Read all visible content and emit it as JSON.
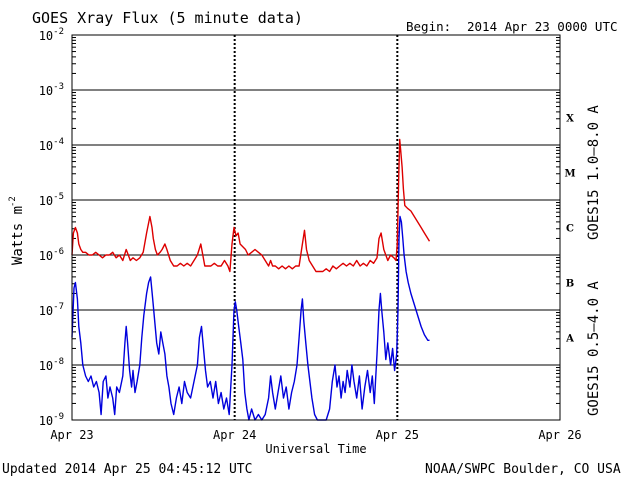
{
  "chart_data": {
    "type": "line",
    "title": "GOES Xray Flux (5 minute data)",
    "begin_label": "Begin:",
    "begin_value": "2014 Apr 23 0000 UTC",
    "xlabel": "Universal Time",
    "ylabel_base": "Watts m",
    "ylabel_exponent": "-2",
    "y_scale": "log",
    "ylim": [
      1e-09,
      0.01
    ],
    "xlim_hours": [
      0,
      72
    ],
    "x_ticks": [
      {
        "hour": 0,
        "label": "Apr 23"
      },
      {
        "hour": 24,
        "label": "Apr 24"
      },
      {
        "hour": 48,
        "label": "Apr 25"
      },
      {
        "hour": 72,
        "label": "Apr 26"
      }
    ],
    "y_ticks": [
      {
        "exp": -2,
        "base": "10",
        "sup": "-2"
      },
      {
        "exp": -3,
        "base": "10",
        "sup": "-3"
      },
      {
        "exp": -4,
        "base": "10",
        "sup": "-4"
      },
      {
        "exp": -5,
        "base": "10",
        "sup": "-5"
      },
      {
        "exp": -6,
        "base": "10",
        "sup": "-6"
      },
      {
        "exp": -7,
        "base": "10",
        "sup": "-7"
      },
      {
        "exp": -8,
        "base": "10",
        "sup": "-8"
      },
      {
        "exp": -9,
        "base": "10",
        "sup": "-9"
      }
    ],
    "flare_classes": [
      {
        "label": "X",
        "exp": -3.5
      },
      {
        "label": "M",
        "exp": -4.5
      },
      {
        "label": "C",
        "exp": -5.5
      },
      {
        "label": "B",
        "exp": -6.5
      },
      {
        "label": "A",
        "exp": -7.5
      }
    ],
    "series": [
      {
        "name": "GOES15 1.0–8.0 A",
        "color": "#dd0000",
        "points": [
          [
            0.0,
            -6.0
          ],
          [
            0.2,
            -5.6
          ],
          [
            0.5,
            -5.5
          ],
          [
            0.8,
            -5.6
          ],
          [
            1.0,
            -5.8
          ],
          [
            1.3,
            -5.9
          ],
          [
            1.6,
            -5.95
          ],
          [
            2.0,
            -5.95
          ],
          [
            2.5,
            -6.0
          ],
          [
            3.0,
            -6.0
          ],
          [
            3.5,
            -5.95
          ],
          [
            4.0,
            -6.0
          ],
          [
            4.5,
            -6.05
          ],
          [
            5.0,
            -6.0
          ],
          [
            5.5,
            -6.0
          ],
          [
            6.0,
            -5.95
          ],
          [
            6.5,
            -6.05
          ],
          [
            7.0,
            -6.0
          ],
          [
            7.5,
            -6.1
          ],
          [
            8.0,
            -5.9
          ],
          [
            8.3,
            -6.0
          ],
          [
            8.6,
            -6.1
          ],
          [
            9.0,
            -6.05
          ],
          [
            9.5,
            -6.1
          ],
          [
            10.0,
            -6.05
          ],
          [
            10.5,
            -5.95
          ],
          [
            11.0,
            -5.6
          ],
          [
            11.5,
            -5.3
          ],
          [
            11.8,
            -5.5
          ],
          [
            12.0,
            -5.7
          ],
          [
            12.3,
            -5.9
          ],
          [
            12.6,
            -6.0
          ],
          [
            13.0,
            -5.95
          ],
          [
            13.3,
            -5.9
          ],
          [
            13.7,
            -5.8
          ],
          [
            14.0,
            -5.9
          ],
          [
            14.5,
            -6.1
          ],
          [
            15.0,
            -6.2
          ],
          [
            15.5,
            -6.2
          ],
          [
            16.0,
            -6.15
          ],
          [
            16.5,
            -6.2
          ],
          [
            17.0,
            -6.15
          ],
          [
            17.5,
            -6.2
          ],
          [
            18.0,
            -6.1
          ],
          [
            18.5,
            -6.0
          ],
          [
            19.0,
            -5.8
          ],
          [
            19.3,
            -6.0
          ],
          [
            19.6,
            -6.2
          ],
          [
            20.0,
            -6.2
          ],
          [
            20.5,
            -6.2
          ],
          [
            21.0,
            -6.15
          ],
          [
            21.5,
            -6.2
          ],
          [
            22.0,
            -6.2
          ],
          [
            22.5,
            -6.1
          ],
          [
            23.0,
            -6.2
          ],
          [
            23.3,
            -6.3
          ],
          [
            23.6,
            -5.8
          ],
          [
            23.9,
            -5.5
          ],
          [
            24.2,
            -5.65
          ],
          [
            24.5,
            -5.6
          ],
          [
            24.8,
            -5.8
          ],
          [
            25.2,
            -5.85
          ],
          [
            25.6,
            -5.9
          ],
          [
            26.0,
            -6.0
          ],
          [
            26.5,
            -5.95
          ],
          [
            27.0,
            -5.9
          ],
          [
            27.5,
            -5.95
          ],
          [
            28.0,
            -6.0
          ],
          [
            28.5,
            -6.1
          ],
          [
            29.0,
            -6.2
          ],
          [
            29.3,
            -6.1
          ],
          [
            29.6,
            -6.2
          ],
          [
            30.0,
            -6.2
          ],
          [
            30.5,
            -6.25
          ],
          [
            31.0,
            -6.2
          ],
          [
            31.5,
            -6.25
          ],
          [
            32.0,
            -6.2
          ],
          [
            32.5,
            -6.25
          ],
          [
            33.0,
            -6.2
          ],
          [
            33.5,
            -6.2
          ],
          [
            34.0,
            -5.8
          ],
          [
            34.3,
            -5.55
          ],
          [
            34.6,
            -5.9
          ],
          [
            35.0,
            -6.1
          ],
          [
            35.5,
            -6.2
          ],
          [
            36.0,
            -6.3
          ],
          [
            36.5,
            -6.3
          ],
          [
            37.0,
            -6.3
          ],
          [
            37.5,
            -6.25
          ],
          [
            38.0,
            -6.3
          ],
          [
            38.5,
            -6.2
          ],
          [
            39.0,
            -6.25
          ],
          [
            39.5,
            -6.2
          ],
          [
            40.0,
            -6.15
          ],
          [
            40.5,
            -6.2
          ],
          [
            41.0,
            -6.15
          ],
          [
            41.5,
            -6.2
          ],
          [
            42.0,
            -6.1
          ],
          [
            42.5,
            -6.2
          ],
          [
            43.0,
            -6.15
          ],
          [
            43.5,
            -6.2
          ],
          [
            44.0,
            -6.1
          ],
          [
            44.5,
            -6.15
          ],
          [
            45.0,
            -6.05
          ],
          [
            45.3,
            -5.7
          ],
          [
            45.6,
            -5.6
          ],
          [
            46.0,
            -5.9
          ],
          [
            46.3,
            -6.0
          ],
          [
            46.6,
            -6.1
          ],
          [
            47.0,
            -6.0
          ],
          [
            47.5,
            -6.05
          ],
          [
            47.8,
            -6.1
          ],
          [
            48.0,
            -5.8
          ],
          [
            48.2,
            -4.6
          ],
          [
            48.35,
            -3.9
          ],
          [
            48.5,
            -4.1
          ],
          [
            48.7,
            -4.4
          ],
          [
            48.9,
            -4.8
          ],
          [
            49.1,
            -5.1
          ],
          [
            49.5,
            -5.15
          ],
          [
            50.0,
            -5.2
          ],
          [
            50.5,
            -5.3
          ],
          [
            51.0,
            -5.4
          ],
          [
            51.5,
            -5.5
          ],
          [
            52.0,
            -5.6
          ],
          [
            52.5,
            -5.7
          ],
          [
            52.75,
            -5.75
          ]
        ]
      },
      {
        "name": "GOES15 0.5–4.0 A",
        "color": "#0000dd",
        "points": [
          [
            0.0,
            -7.5
          ],
          [
            0.3,
            -6.6
          ],
          [
            0.5,
            -6.5
          ],
          [
            0.8,
            -6.8
          ],
          [
            1.0,
            -7.3
          ],
          [
            1.3,
            -7.6
          ],
          [
            1.6,
            -8.0
          ],
          [
            2.0,
            -8.2
          ],
          [
            2.4,
            -8.3
          ],
          [
            2.8,
            -8.2
          ],
          [
            3.2,
            -8.4
          ],
          [
            3.6,
            -8.3
          ],
          [
            4.0,
            -8.5
          ],
          [
            4.3,
            -8.9
          ],
          [
            4.6,
            -8.3
          ],
          [
            5.0,
            -8.2
          ],
          [
            5.3,
            -8.6
          ],
          [
            5.6,
            -8.4
          ],
          [
            6.0,
            -8.6
          ],
          [
            6.3,
            -8.9
          ],
          [
            6.6,
            -8.4
          ],
          [
            7.0,
            -8.5
          ],
          [
            7.5,
            -8.2
          ],
          [
            7.8,
            -7.6
          ],
          [
            8.0,
            -7.3
          ],
          [
            8.2,
            -7.6
          ],
          [
            8.5,
            -8.1
          ],
          [
            8.8,
            -8.4
          ],
          [
            9.0,
            -8.1
          ],
          [
            9.3,
            -8.5
          ],
          [
            9.6,
            -8.3
          ],
          [
            10.0,
            -8.0
          ],
          [
            10.3,
            -7.5
          ],
          [
            10.6,
            -7.1
          ],
          [
            11.0,
            -6.7
          ],
          [
            11.3,
            -6.5
          ],
          [
            11.6,
            -6.4
          ],
          [
            11.9,
            -6.8
          ],
          [
            12.2,
            -7.2
          ],
          [
            12.5,
            -7.6
          ],
          [
            12.8,
            -7.8
          ],
          [
            13.1,
            -7.4
          ],
          [
            13.4,
            -7.6
          ],
          [
            13.7,
            -7.8
          ],
          [
            14.0,
            -8.2
          ],
          [
            14.3,
            -8.4
          ],
          [
            14.6,
            -8.7
          ],
          [
            15.0,
            -8.9
          ],
          [
            15.4,
            -8.6
          ],
          [
            15.8,
            -8.4
          ],
          [
            16.2,
            -8.7
          ],
          [
            16.6,
            -8.3
          ],
          [
            17.0,
            -8.5
          ],
          [
            17.5,
            -8.6
          ],
          [
            18.0,
            -8.3
          ],
          [
            18.5,
            -8.0
          ],
          [
            18.8,
            -7.5
          ],
          [
            19.1,
            -7.3
          ],
          [
            19.4,
            -7.7
          ],
          [
            19.7,
            -8.1
          ],
          [
            20.0,
            -8.4
          ],
          [
            20.4,
            -8.3
          ],
          [
            20.8,
            -8.6
          ],
          [
            21.2,
            -8.3
          ],
          [
            21.6,
            -8.7
          ],
          [
            22.0,
            -8.5
          ],
          [
            22.4,
            -8.8
          ],
          [
            22.8,
            -8.6
          ],
          [
            23.2,
            -8.9
          ],
          [
            23.6,
            -8.0
          ],
          [
            23.9,
            -7.0
          ],
          [
            24.1,
            -6.85
          ],
          [
            24.3,
            -7.0
          ],
          [
            24.6,
            -7.3
          ],
          [
            24.9,
            -7.6
          ],
          [
            25.2,
            -7.9
          ],
          [
            25.5,
            -8.5
          ],
          [
            25.8,
            -8.8
          ],
          [
            26.1,
            -9.0
          ],
          [
            26.5,
            -8.8
          ],
          [
            27.0,
            -9.0
          ],
          [
            27.5,
            -8.9
          ],
          [
            28.0,
            -9.0
          ],
          [
            28.5,
            -8.9
          ],
          [
            29.0,
            -8.6
          ],
          [
            29.3,
            -8.2
          ],
          [
            29.6,
            -8.5
          ],
          [
            30.0,
            -8.8
          ],
          [
            30.4,
            -8.5
          ],
          [
            30.8,
            -8.2
          ],
          [
            31.2,
            -8.6
          ],
          [
            31.6,
            -8.4
          ],
          [
            32.0,
            -8.8
          ],
          [
            32.4,
            -8.5
          ],
          [
            32.8,
            -8.3
          ],
          [
            33.2,
            -8.0
          ],
          [
            33.5,
            -7.5
          ],
          [
            33.8,
            -7.0
          ],
          [
            34.0,
            -6.8
          ],
          [
            34.2,
            -7.2
          ],
          [
            34.5,
            -7.6
          ],
          [
            34.8,
            -8.0
          ],
          [
            35.1,
            -8.3
          ],
          [
            35.4,
            -8.6
          ],
          [
            35.8,
            -8.9
          ],
          [
            36.2,
            -9.0
          ],
          [
            36.6,
            -9.0
          ],
          [
            37.0,
            -9.0
          ],
          [
            37.5,
            -9.0
          ],
          [
            38.0,
            -8.8
          ],
          [
            38.4,
            -8.3
          ],
          [
            38.8,
            -8.0
          ],
          [
            39.1,
            -8.4
          ],
          [
            39.4,
            -8.2
          ],
          [
            39.7,
            -8.6
          ],
          [
            40.0,
            -8.3
          ],
          [
            40.3,
            -8.5
          ],
          [
            40.6,
            -8.1
          ],
          [
            41.0,
            -8.4
          ],
          [
            41.3,
            -8.0
          ],
          [
            41.6,
            -8.3
          ],
          [
            42.0,
            -8.6
          ],
          [
            42.4,
            -8.2
          ],
          [
            42.8,
            -8.8
          ],
          [
            43.2,
            -8.4
          ],
          [
            43.6,
            -8.1
          ],
          [
            44.0,
            -8.5
          ],
          [
            44.3,
            -8.2
          ],
          [
            44.6,
            -8.7
          ],
          [
            45.0,
            -7.8
          ],
          [
            45.3,
            -7.0
          ],
          [
            45.5,
            -6.7
          ],
          [
            45.7,
            -7.0
          ],
          [
            46.0,
            -7.4
          ],
          [
            46.3,
            -7.9
          ],
          [
            46.6,
            -7.6
          ],
          [
            47.0,
            -8.0
          ],
          [
            47.3,
            -7.7
          ],
          [
            47.6,
            -8.1
          ],
          [
            47.9,
            -7.8
          ],
          [
            48.1,
            -7.0
          ],
          [
            48.25,
            -5.7
          ],
          [
            48.4,
            -5.3
          ],
          [
            48.6,
            -5.4
          ],
          [
            48.8,
            -5.7
          ],
          [
            49.0,
            -6.0
          ],
          [
            49.3,
            -6.3
          ],
          [
            49.6,
            -6.5
          ],
          [
            50.0,
            -6.7
          ],
          [
            50.5,
            -6.9
          ],
          [
            51.0,
            -7.1
          ],
          [
            51.5,
            -7.3
          ],
          [
            52.0,
            -7.45
          ],
          [
            52.5,
            -7.55
          ],
          [
            52.75,
            -7.55
          ]
        ]
      }
    ]
  },
  "footer": {
    "updated": "Updated 2014 Apr 25 04:45:12 UTC",
    "credit": "NOAA/SWPC Boulder, CO USA"
  }
}
